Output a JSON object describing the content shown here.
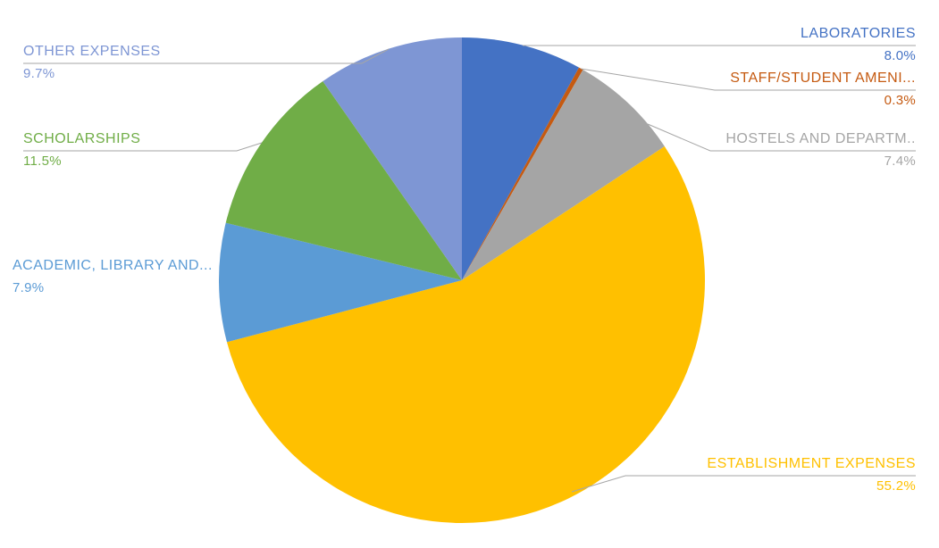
{
  "page": {
    "background_color": "#FFFFFF"
  },
  "chart_data": {
    "type": "pie",
    "title": "",
    "legend": "none",
    "labels_position": "outside-with-leader-lines",
    "start_angle_deg": 0,
    "direction": "clockwise",
    "leader_line_color": "#A6A6A6",
    "slices": [
      {
        "label": "LABORATORIES",
        "value_pct": 8.0,
        "pct_label": "8.0%",
        "color": "#4472C4",
        "side": "right"
      },
      {
        "label": "STAFF/STUDENT AMENI...",
        "value_pct": 0.3,
        "pct_label": "0.3%",
        "color": "#C55A11",
        "side": "right"
      },
      {
        "label": "HOSTELS AND DEPARTM..",
        "value_pct": 7.4,
        "pct_label": "7.4%",
        "color": "#A5A5A5",
        "side": "right"
      },
      {
        "label": "ESTABLISHMENT EXPENSES",
        "value_pct": 55.2,
        "pct_label": "55.2%",
        "color": "#FFC000",
        "side": "right"
      },
      {
        "label": "ACADEMIC, LIBRARY AND...",
        "value_pct": 7.9,
        "pct_label": "7.9%",
        "color": "#5B9BD5",
        "side": "left"
      },
      {
        "label": "SCHOLARSHIPS",
        "value_pct": 11.5,
        "pct_label": "11.5%",
        "color": "#70AD47",
        "side": "left"
      },
      {
        "label": "OTHER EXPENSES",
        "value_pct": 9.7,
        "pct_label": "9.7%",
        "color": "#7E96D4",
        "side": "left"
      }
    ]
  }
}
